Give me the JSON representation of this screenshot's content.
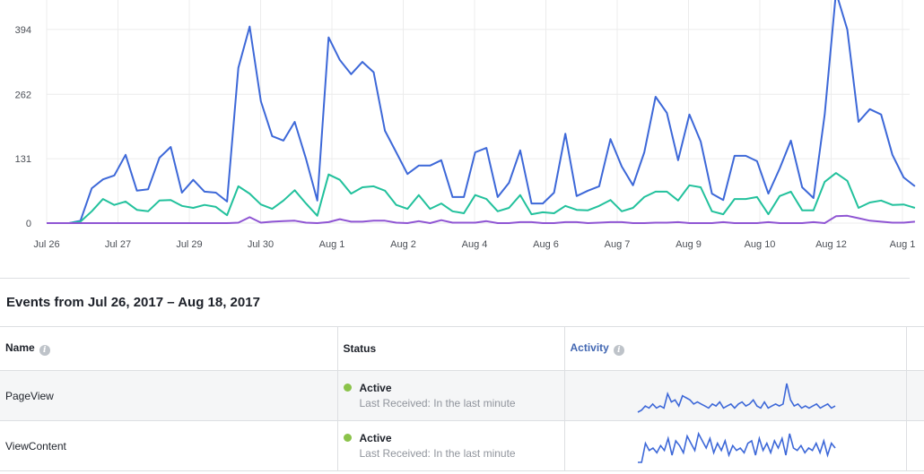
{
  "chart_data": {
    "type": "line",
    "title": "",
    "xlabel": "",
    "ylabel": "",
    "ylim": [
      0,
      454
    ],
    "y_ticks": [
      "0",
      "131",
      "262",
      "394"
    ],
    "y_tick_values": [
      0,
      131,
      262,
      394
    ],
    "x_ticks": [
      "Jul 26",
      "Jul 27",
      "Jul 29",
      "Jul 30",
      "Aug 1",
      "Aug 2",
      "Aug 4",
      "Aug 6",
      "Aug 7",
      "Aug 9",
      "Aug 10",
      "Aug 12",
      "Aug 1"
    ],
    "grid": true,
    "legend": "none",
    "series": [
      {
        "color": "#3d68d8",
        "values": [
          0,
          0,
          0,
          5,
          71,
          89,
          97,
          139,
          66,
          69,
          133,
          155,
          62,
          88,
          64,
          62,
          44,
          316,
          400,
          248,
          177,
          168,
          206,
          131,
          46,
          378,
          332,
          303,
          328,
          307,
          188,
          144,
          100,
          117,
          117,
          128,
          53,
          53,
          144,
          153,
          53,
          82,
          148,
          40,
          40,
          62,
          182,
          55,
          66,
          75,
          171,
          115,
          77,
          144,
          257,
          224,
          128,
          221,
          166,
          60,
          47,
          137,
          137,
          126,
          60,
          111,
          168,
          73,
          51,
          221,
          470,
          394,
          206,
          232,
          221,
          139,
          93,
          75
        ]
      },
      {
        "color": "#22c19c",
        "values": [
          0,
          0,
          0,
          3,
          24,
          49,
          37,
          44,
          27,
          24,
          46,
          47,
          35,
          31,
          37,
          33,
          16,
          75,
          60,
          38,
          29,
          46,
          67,
          40,
          15,
          99,
          88,
          60,
          73,
          75,
          66,
          37,
          29,
          57,
          29,
          40,
          24,
          20,
          57,
          49,
          24,
          31,
          57,
          18,
          22,
          20,
          35,
          27,
          26,
          35,
          47,
          24,
          31,
          53,
          64,
          64,
          46,
          77,
          73,
          24,
          18,
          49,
          49,
          53,
          18,
          55,
          64,
          26,
          26,
          84,
          102,
          86,
          31,
          42,
          46,
          37,
          38,
          31
        ]
      },
      {
        "color": "#8f55d3",
        "values": [
          0,
          0,
          0,
          0,
          0,
          0,
          0,
          0,
          0,
          0,
          0,
          0,
          0,
          0,
          0,
          0,
          0,
          1,
          12,
          1,
          3,
          4,
          5,
          1,
          0,
          2,
          8,
          3,
          3,
          5,
          5,
          1,
          0,
          4,
          0,
          6,
          1,
          1,
          1,
          4,
          0,
          0,
          2,
          2,
          0,
          0,
          2,
          2,
          0,
          1,
          2,
          2,
          0,
          0,
          1,
          1,
          2,
          0,
          0,
          0,
          2,
          0,
          0,
          0,
          2,
          0,
          0,
          0,
          2,
          0,
          14,
          15,
          10,
          5,
          3,
          1,
          1,
          3
        ]
      }
    ]
  },
  "events": {
    "title": "Events from Jul 26, 2017 – Aug 18, 2017",
    "columns": {
      "name": "Name",
      "status": "Status",
      "activity": "Activity"
    },
    "info_glyph": "i",
    "rows": [
      {
        "name": "PageView",
        "status": "Active",
        "last_received": "Last Received: In the last minute",
        "status_color": "#8bc34a",
        "spark": [
          0,
          1,
          3,
          2,
          4,
          2,
          3,
          2,
          9,
          5,
          6,
          3,
          8,
          7,
          6,
          4,
          5,
          4,
          3,
          2,
          4,
          3,
          5,
          2,
          3,
          4,
          2,
          4,
          5,
          3,
          4,
          6,
          3,
          2,
          5,
          2,
          3,
          4,
          3,
          4,
          14,
          6,
          3,
          4,
          2,
          3,
          2,
          3,
          4,
          2,
          3,
          4,
          2,
          3
        ]
      },
      {
        "name": "ViewContent",
        "status": "Active",
        "last_received": "Last Received: In the last minute",
        "status_color": "#8bc34a",
        "spark": [
          0,
          0,
          8,
          5,
          6,
          4,
          7,
          5,
          10,
          3,
          9,
          7,
          4,
          11,
          8,
          5,
          12,
          9,
          6,
          10,
          4,
          8,
          5,
          9,
          3,
          7,
          5,
          6,
          4,
          8,
          9,
          3,
          10,
          5,
          8,
          4,
          9,
          6,
          10,
          3,
          12,
          6,
          5,
          7,
          4,
          6,
          5,
          8,
          4,
          9,
          3,
          8,
          6
        ]
      }
    ]
  }
}
